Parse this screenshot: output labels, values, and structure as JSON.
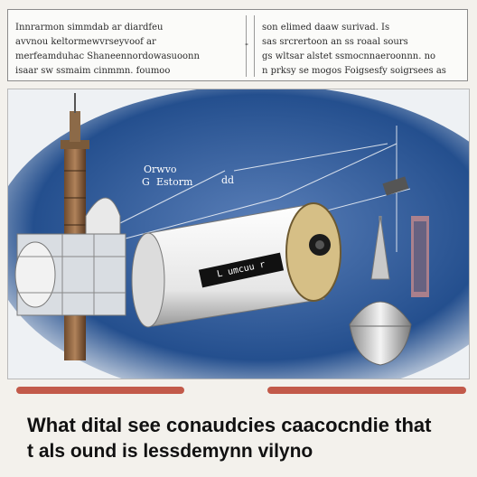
{
  "header": {
    "left_column": [
      "Innrarmon simmdab ar diardfeu",
      "avvnou keltormewvrseyvoof ar",
      "merfeamduhac Shaneennordowasuoonn",
      "isaar sw ssmaim cinmmn. foumoo"
    ],
    "right_column": [
      "son elimed daaw surivad. Is",
      "sas srcrertoon an ss roaal sours",
      "gs wltsar alstet ssmocnnaeroonnn. no",
      "n prksy se mogos Foigsesfy soigrsees as"
    ],
    "separator_glyph": "-"
  },
  "illustration": {
    "cylinder_label": "L umcuu r",
    "annotations": [
      "Orwvo",
      "G",
      "Estorm",
      "dd"
    ]
  },
  "caption": {
    "line1": "What dital see conaudcies caacocndie that",
    "line2": "t als ound is lessdemynn vilyno"
  }
}
